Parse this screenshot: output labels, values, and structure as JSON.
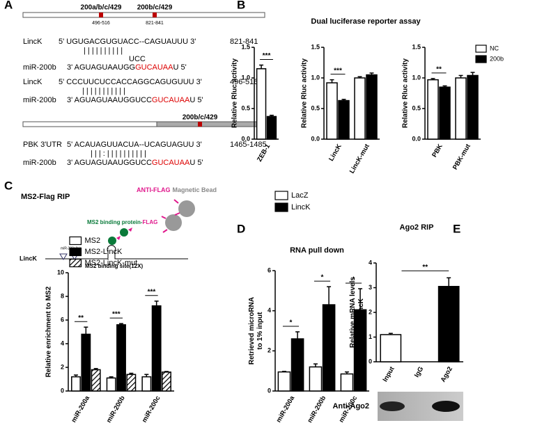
{
  "panel_labels": [
    "A",
    "B",
    "C",
    "D",
    "E"
  ],
  "panel_a": {
    "bar1_labels": [
      "200a/b/c/429",
      "200b/c/429"
    ],
    "bar1_ranges": [
      "496-516",
      "821-841"
    ],
    "bar2_label": "200b/c/429",
    "rows": [
      {
        "name": "LincK",
        "seq": [
          "5' UGUGACGUGUACC--CAGUAUUU 3'"
        ],
        "range": "821-841"
      },
      {
        "seq": [
          "|     |   |  |   |      |  |  |  |  |"
        ]
      },
      {
        "seq": [
          "UCC"
        ]
      },
      {
        "name": "miR-200b",
        "seq": [
          "3' AGUAGUAAUGG",
          "GUCAUAA",
          "U 5'"
        ]
      },
      {
        "name": "LincK",
        "seq": [
          "5' CCCUUCUCCACCAGGCAGUGUUU 3'"
        ],
        "range": "496-516"
      },
      {
        "seq": [
          "|     |          |  |  |  |  |  |  |  |  |"
        ]
      },
      {
        "name": "miR-200b",
        "seq": [
          "3' AGUAGUAAUGGUCC",
          "GUCAUAA",
          "U 5'"
        ]
      },
      {
        "name": "PBK 3'UTR",
        "seq": [
          "5' ACAUAGUUACUA--UCAGUAGUU 3'"
        ],
        "range": "1465-1485"
      },
      {
        "seq": [
          "|  |  |  :  |  |  |  |  |  |  |  |  |  |"
        ]
      },
      {
        "name": "miR-200b",
        "seq": [
          "3' AGUAGUAAUGGUCC",
          "GUCAUAA",
          "U 5'"
        ]
      }
    ]
  },
  "panel_b_title": "Dual luciferase reporter assay",
  "panel_c_diagram": {
    "title": "MS2-Flag RIP",
    "anti_flag": "ANTI-FLAG",
    "bead": "Magnetic Bead",
    "protein": "MS2 binding protein-",
    "flag": "FLAG",
    "rna": "LincK",
    "site": "miR-200a/b/c",
    "ms2_site": "MS2 binding site(12X)"
  },
  "blot_label": "Anti-Ago2",
  "chart_data": [
    {
      "type": "bar",
      "categories": [
        "ZEB-1"
      ],
      "ylabel": "Relative Rluc activity",
      "series": [
        {
          "name": "NC",
          "color": "#ffffff",
          "values": [
            1.15
          ],
          "errors": [
            0.06
          ]
        },
        {
          "name": "200b",
          "color": "#000000",
          "values": [
            0.37
          ],
          "errors": [
            0.02
          ]
        }
      ],
      "significance": [
        "***"
      ],
      "ylim": [
        0,
        1.5
      ],
      "yticks": [
        {
          "value": 0,
          "label": "0.0"
        },
        {
          "value": 0.5,
          "label": "0.5"
        },
        {
          "value": 1,
          "label": "1.0"
        },
        {
          "value": 1.5,
          "label": "1.5"
        }
      ]
    },
    {
      "type": "bar",
      "categories": [
        "LincK",
        "LincK-mut"
      ],
      "ylabel": "Relative Rluc activity",
      "series": [
        {
          "name": "NC",
          "color": "#ffffff",
          "values": [
            0.92,
            1.0
          ],
          "errors": [
            0.05,
            0.02
          ]
        },
        {
          "name": "200b",
          "color": "#000000",
          "values": [
            0.63,
            1.05
          ],
          "errors": [
            0.02,
            0.03
          ]
        }
      ],
      "significance": [
        "***",
        null
      ],
      "ylim": [
        0,
        1.5
      ],
      "yticks": [
        {
          "value": 0,
          "label": "0.0"
        },
        {
          "value": 0.5,
          "label": "0.5"
        },
        {
          "value": 1,
          "label": "1.0"
        },
        {
          "value": 1.5,
          "label": "1.5"
        }
      ]
    },
    {
      "type": "bar",
      "categories": [
        "PBK",
        "PBK-mut"
      ],
      "ylabel": "Relative Rluc activity",
      "series": [
        {
          "name": "NC",
          "color": "#ffffff",
          "values": [
            0.97,
            1.0
          ],
          "errors": [
            0.02,
            0.04
          ]
        },
        {
          "name": "200b",
          "color": "#000000",
          "values": [
            0.85,
            1.04
          ],
          "errors": [
            0.02,
            0.05
          ]
        }
      ],
      "significance": [
        "**",
        null
      ],
      "legend": "upper right",
      "ylim": [
        0,
        1.5
      ],
      "yticks": [
        {
          "value": 0,
          "label": "0.0"
        },
        {
          "value": 0.5,
          "label": "0.5"
        },
        {
          "value": 1,
          "label": "1.0"
        },
        {
          "value": 1.5,
          "label": "1.5"
        }
      ]
    },
    {
      "type": "bar",
      "categories": [
        "miR-200a",
        "miR-200b",
        "miR-200c"
      ],
      "ylabel": "Relative enrichment to MS2",
      "series": [
        {
          "name": "MS2",
          "color": "#ffffff",
          "values": [
            1.2,
            1.1,
            1.2
          ],
          "errors": [
            0.15,
            0.1,
            0.2
          ]
        },
        {
          "name": "MS2-LincK",
          "color": "#000000",
          "values": [
            4.8,
            5.6,
            7.2
          ],
          "errors": [
            0.6,
            0.1,
            0.4
          ]
        },
        {
          "name": "MS2-LincK-mut",
          "color": "#ffffff",
          "hatch": true,
          "values": [
            1.8,
            1.4,
            1.6
          ],
          "errors": [
            0.1,
            0.1,
            0.05
          ]
        }
      ],
      "significance": [
        "**",
        "***",
        "***"
      ],
      "legend": "upper left",
      "ylim": [
        0,
        10
      ],
      "yticks": [
        0,
        2,
        4,
        6,
        8,
        10
      ]
    },
    {
      "type": "bar",
      "title": "RNA pull down",
      "categories": [
        "miR-200a",
        "miR-200b",
        "miR-200c"
      ],
      "ylabel": "Retrieved microRNA to 1% input",
      "series": [
        {
          "name": "LacZ",
          "color": "#ffffff",
          "values": [
            0.95,
            1.2,
            0.85
          ],
          "errors": [
            0.03,
            0.15,
            0.1
          ]
        },
        {
          "name": "LincK",
          "color": "#000000",
          "values": [
            2.6,
            4.3,
            4.05
          ],
          "errors": [
            0.35,
            0.9,
            1.05
          ]
        }
      ],
      "significance": [
        "*",
        "*",
        "*"
      ],
      "legend": "upper right",
      "ylim": [
        0,
        6
      ],
      "yticks": [
        0,
        2,
        4,
        6
      ]
    },
    {
      "type": "bar",
      "title": "Ago2 RIP",
      "categories": [
        "Input",
        "IgG",
        "Ago2"
      ],
      "ylabel": "Relative mRNA levels of LincK",
      "series": [
        {
          "colors": [
            "#ffffff",
            "#ffffff",
            "#000000"
          ],
          "values": [
            1.1,
            0,
            3.05
          ],
          "errors": [
            0.05,
            0,
            0.35
          ]
        }
      ],
      "bracket": "**",
      "ylim": [
        0,
        4
      ],
      "yticks": [
        0,
        1,
        2,
        3,
        4
      ]
    }
  ]
}
